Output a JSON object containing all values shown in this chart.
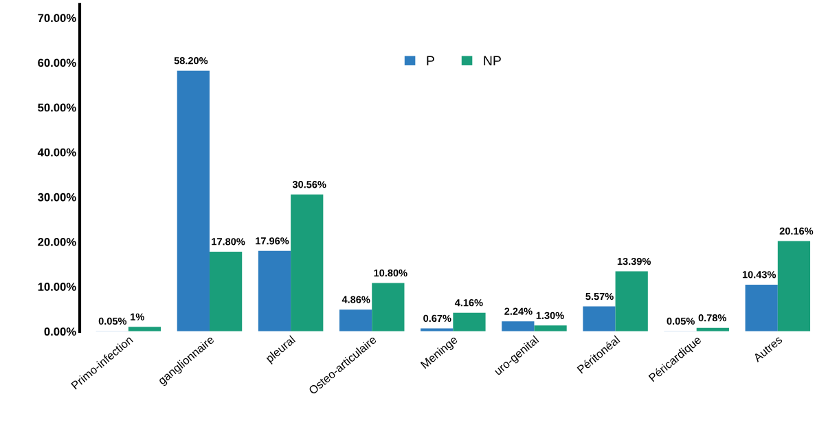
{
  "chart_data": {
    "type": "bar",
    "categories": [
      "Primo-infection",
      "ganglionnaire",
      "pleural",
      "Osteo-articulaire",
      "Meninge",
      "uro-genital",
      "Péritonéal",
      "Péricardique",
      "Autres"
    ],
    "series": [
      {
        "name": "P",
        "color": "#2e7dbf",
        "values": [
          0.05,
          58.2,
          17.96,
          4.86,
          0.67,
          2.24,
          5.57,
          0.05,
          10.43
        ],
        "value_labels": [
          "0.05%",
          "58.20%",
          "17.96%",
          "4.86%",
          "0.67%",
          "2.24%",
          "5.57%",
          "0.05%",
          "10.43%"
        ]
      },
      {
        "name": "NP",
        "color": "#1a9e7a",
        "values": [
          1,
          17.8,
          30.56,
          10.8,
          4.16,
          1.3,
          13.39,
          0.78,
          20.16
        ],
        "value_labels": [
          "1%",
          "17.80%",
          "30.56%",
          "10.80%",
          "4.16%",
          "1.30%",
          "13.39%",
          "0.78%",
          "20.16%"
        ]
      }
    ],
    "ylim": [
      0,
      73
    ],
    "yticks": [
      {
        "value": 0,
        "label": "0.00%"
      },
      {
        "value": 10,
        "label": "10.00%"
      },
      {
        "value": 20,
        "label": "20.00%"
      },
      {
        "value": 30,
        "label": "30.00%"
      },
      {
        "value": 40,
        "label": "40.00%"
      },
      {
        "value": 50,
        "label": "50.00%"
      },
      {
        "value": 60,
        "label": "60.00%"
      },
      {
        "value": 70,
        "label": "70.00%"
      }
    ],
    "grid": false,
    "legend": "top"
  }
}
